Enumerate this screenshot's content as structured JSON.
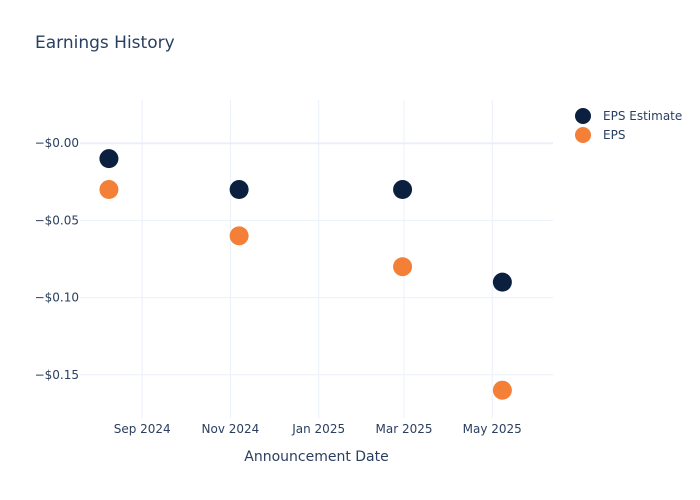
{
  "chart_data": {
    "type": "scatter",
    "title": "Earnings History",
    "xlabel": "Announcement Date",
    "ylabel": "",
    "x_axis": {
      "type": "date",
      "range": [
        "2024-07-20",
        "2025-06-12"
      ],
      "ticks": [
        {
          "date": "2024-09-01",
          "label": "Sep 2024"
        },
        {
          "date": "2024-11-01",
          "label": "Nov 2024"
        },
        {
          "date": "2025-01-01",
          "label": "Jan 2025"
        },
        {
          "date": "2025-03-01",
          "label": "Mar 2025"
        },
        {
          "date": "2025-05-01",
          "label": "May 2025"
        }
      ]
    },
    "y_axis": {
      "range": [
        -0.178,
        0.028
      ],
      "ticks": [
        {
          "value": 0,
          "label": "−$0.00"
        },
        {
          "value": -0.05,
          "label": "−$0.05"
        },
        {
          "value": -0.1,
          "label": "−$0.10"
        },
        {
          "value": -0.15,
          "label": "−$0.15"
        }
      ]
    },
    "grid": true,
    "legend_position": "top-right",
    "series": [
      {
        "name": "EPS Estimate",
        "color": "#0b1f3f",
        "points": [
          {
            "x": "2024-08-09",
            "y": -0.01
          },
          {
            "x": "2024-11-07",
            "y": -0.03
          },
          {
            "x": "2025-02-28",
            "y": -0.03
          },
          {
            "x": "2025-05-08",
            "y": -0.09
          }
        ]
      },
      {
        "name": "EPS",
        "color": "#f47f36",
        "points": [
          {
            "x": "2024-08-09",
            "y": -0.03
          },
          {
            "x": "2024-11-07",
            "y": -0.06
          },
          {
            "x": "2025-02-28",
            "y": -0.08
          },
          {
            "x": "2025-05-08",
            "y": -0.16
          }
        ]
      }
    ]
  }
}
